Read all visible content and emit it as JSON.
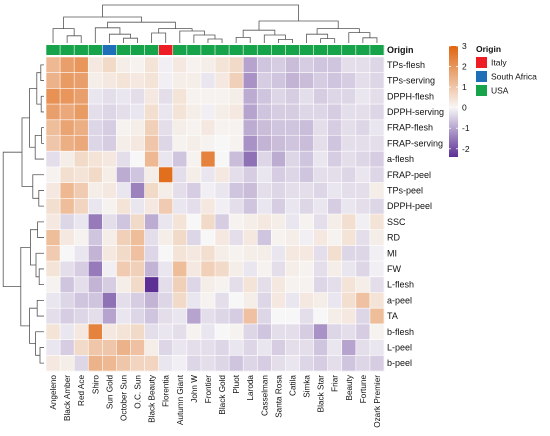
{
  "chart_data": {
    "type": "heatmap",
    "title": "",
    "xlabel": "",
    "ylabel": "",
    "columns": [
      "Angeleno",
      "Black Amber",
      "Red Ace",
      "Shiro",
      "Sun Gold",
      "October Sun",
      "O.C. Sun",
      "Black Beauty",
      "Florentia",
      "Autumn Giant",
      "John W",
      "Frontier",
      "Black Gold",
      "Pluot",
      "Laroda",
      "Casselman",
      "Santa Rosa",
      "Catila",
      "Simka",
      "Black Star",
      "Friar",
      "Beauty",
      "Fortune",
      "Ozark Premier"
    ],
    "rows": [
      "TPs-flesh",
      "TPs-serving",
      "DPPH-flesh",
      "DPPH-serving",
      "FRAP-flesh",
      "FRAP-serving",
      "a-flesh",
      "FRAP-peel",
      "TPs-peel",
      "DPPH-peel",
      "SSC",
      "RD",
      "MI",
      "FW",
      "L-flesh",
      "a-peel",
      "TA",
      "b-flesh",
      "L-peel",
      "b-peel"
    ],
    "values": [
      [
        1.3,
        1.8,
        2.0,
        0.3,
        0.6,
        0.2,
        0.1,
        0.4,
        -0.1,
        0.3,
        0.1,
        0.2,
        0.4,
        0.6,
        -1.0,
        -0.6,
        -0.5,
        -0.7,
        -0.5,
        -0.6,
        -0.6,
        -0.3,
        -0.3,
        -0.4
      ],
      [
        1.4,
        1.9,
        1.8,
        0.2,
        0.3,
        0.4,
        0.3,
        0.4,
        -0.1,
        0.2,
        0.2,
        -0.2,
        0.3,
        0.8,
        -1.2,
        -0.5,
        -0.6,
        -0.8,
        -0.7,
        -0.5,
        -0.6,
        -0.5,
        -0.3,
        -0.4
      ],
      [
        2.1,
        2.0,
        1.8,
        -0.2,
        -0.3,
        -0.2,
        -0.3,
        0.3,
        -0.3,
        0.4,
        0.1,
        0.1,
        0.1,
        0.2,
        -0.9,
        -0.6,
        -0.4,
        -0.5,
        -0.3,
        -0.5,
        -0.4,
        -0.4,
        -0.2,
        -0.3
      ],
      [
        1.8,
        1.6,
        1.9,
        -0.3,
        -0.4,
        -0.3,
        -0.2,
        0.5,
        -0.2,
        0.4,
        0.2,
        -0.1,
        0.2,
        0.3,
        -1.0,
        -0.6,
        -0.5,
        -0.5,
        -0.4,
        -0.4,
        -0.5,
        -0.3,
        -0.3,
        -0.4
      ],
      [
        1.2,
        1.7,
        1.5,
        -0.4,
        -0.5,
        0.1,
        0.2,
        0.8,
        -0.3,
        0.2,
        0.1,
        0.3,
        0.1,
        0.1,
        -0.9,
        -0.7,
        -0.6,
        -0.6,
        -0.7,
        -0.3,
        -0.5,
        -0.3,
        -0.4,
        -0.2
      ],
      [
        1.0,
        1.5,
        1.6,
        -0.4,
        -0.5,
        0.2,
        0.3,
        1.0,
        -0.4,
        0.1,
        0.2,
        0.1,
        0.0,
        0.1,
        -1.2,
        -0.8,
        -0.7,
        -0.6,
        -0.7,
        -0.3,
        -0.6,
        -0.3,
        -0.3,
        -0.3
      ],
      [
        -0.3,
        0.2,
        0.6,
        0.4,
        0.3,
        -0.3,
        0.0,
        1.3,
        -0.2,
        -0.6,
        0.1,
        2.4,
        0.0,
        -0.7,
        -1.6,
        -0.4,
        -0.9,
        -0.4,
        -0.6,
        -0.2,
        -0.5,
        -0.3,
        -0.4,
        -0.5
      ],
      [
        0.1,
        0.5,
        0.4,
        0.6,
        0.2,
        -0.9,
        -0.6,
        0.2,
        2.8,
        -0.3,
        0.2,
        -0.2,
        0.3,
        -0.3,
        -0.5,
        -0.2,
        -0.5,
        -0.4,
        -0.6,
        -0.3,
        -0.3,
        -0.4,
        -0.2,
        -0.4
      ],
      [
        0.3,
        1.3,
        0.9,
        0.2,
        0.3,
        -0.2,
        -1.4,
        0.6,
        0.2,
        -0.3,
        -0.5,
        -0.1,
        -0.2,
        -0.6,
        -0.7,
        -0.3,
        -0.4,
        -0.3,
        -0.3,
        -0.4,
        -0.2,
        -0.3,
        -0.3,
        0.2
      ],
      [
        0.5,
        1.2,
        0.7,
        -0.2,
        0.1,
        0.4,
        -0.2,
        0.3,
        0.9,
        -0.2,
        -0.3,
        0.3,
        -0.1,
        -0.3,
        -0.6,
        -0.2,
        -0.5,
        -0.2,
        -0.4,
        -0.2,
        -0.5,
        -0.2,
        -0.3,
        -0.4
      ],
      [
        0.3,
        -0.4,
        -0.2,
        -1.5,
        -0.3,
        -0.6,
        0.6,
        -0.9,
        -0.2,
        0.4,
        0.0,
        0.6,
        -0.5,
        0.1,
        0.2,
        0.3,
        0.2,
        -0.2,
        0.1,
        -0.3,
        0.2,
        0.5,
        -0.1,
        0.4
      ],
      [
        1.2,
        0.3,
        0.1,
        -0.6,
        0.2,
        0.8,
        1.2,
        -0.3,
        0.2,
        0.6,
        -0.4,
        0.0,
        0.3,
        -0.3,
        0.3,
        -0.6,
        0.1,
        0.2,
        -0.1,
        0.3,
        0.1,
        0.4,
        -0.3,
        0.2
      ],
      [
        0.9,
        0.0,
        -0.2,
        -0.8,
        0.3,
        0.6,
        1.1,
        -0.4,
        0.0,
        0.4,
        0.3,
        0.5,
        0.2,
        0.1,
        0.2,
        0.2,
        -0.2,
        0.3,
        0.3,
        -0.3,
        0.5,
        -0.4,
        -0.4,
        -0.1
      ],
      [
        0.4,
        -0.3,
        -0.5,
        -1.5,
        -0.1,
        0.9,
        0.8,
        -0.8,
        -0.2,
        1.2,
        0.3,
        0.8,
        0.6,
        0.2,
        -0.2,
        0.1,
        -0.3,
        0.2,
        0.1,
        -0.3,
        0.2,
        -0.2,
        -0.4,
        -0.1
      ],
      [
        0.1,
        -0.6,
        -0.3,
        -0.8,
        -0.5,
        0.2,
        0.6,
        -2.4,
        -0.3,
        0.8,
        -0.4,
        0.2,
        0.1,
        -0.3,
        0.4,
        -0.3,
        0.3,
        0.1,
        0.1,
        -0.4,
        -0.3,
        0.4,
        0.2,
        -0.3
      ],
      [
        -0.2,
        -0.4,
        -0.6,
        -0.6,
        -1.6,
        -0.3,
        -0.5,
        -0.8,
        -0.4,
        0.6,
        -0.2,
        0.1,
        -0.3,
        0.0,
        0.2,
        -0.4,
        0.3,
        -0.2,
        0.3,
        0.2,
        -0.2,
        0.5,
        1.1,
        0.4
      ],
      [
        -0.3,
        -0.5,
        -0.4,
        -0.3,
        -1.0,
        -0.2,
        -0.4,
        -0.6,
        -0.3,
        -0.2,
        -1.0,
        -0.3,
        -0.4,
        -0.5,
        1.1,
        -0.4,
        0.0,
        0.0,
        -0.3,
        0.0,
        0.2,
        0.3,
        -0.4,
        1.2
      ],
      [
        0.4,
        -0.2,
        0.3,
        2.4,
        0.3,
        0.4,
        0.6,
        -0.3,
        -0.2,
        -0.3,
        0.1,
        -0.2,
        0.0,
        0.1,
        -0.4,
        -0.6,
        -0.3,
        -0.3,
        -0.5,
        -1.2,
        -0.4,
        -0.3,
        -0.5,
        0.1
      ],
      [
        -0.2,
        -0.5,
        0.6,
        1.0,
        1.0,
        1.4,
        1.1,
        0.2,
        -0.4,
        -0.2,
        -0.3,
        -0.3,
        -0.4,
        -0.2,
        -0.4,
        -0.2,
        -0.5,
        -0.3,
        -0.3,
        -0.6,
        -0.2,
        -1.0,
        -0.3,
        -0.2
      ],
      [
        0.3,
        0.2,
        -0.4,
        1.4,
        1.3,
        1.0,
        0.7,
        0.7,
        -0.2,
        -0.1,
        -0.4,
        -0.3,
        -0.4,
        -0.6,
        -0.4,
        -0.5,
        -0.3,
        -0.2,
        -0.4,
        -0.5,
        -0.3,
        -0.6,
        -0.4,
        -0.5
      ]
    ],
    "origin": [
      "USA",
      "USA",
      "USA",
      "USA",
      "South Africa",
      "USA",
      "USA",
      "USA",
      "Italy",
      "USA",
      "USA",
      "USA",
      "USA",
      "USA",
      "USA",
      "USA",
      "USA",
      "USA",
      "USA",
      "USA",
      "USA",
      "USA",
      "USA",
      "USA"
    ],
    "color_scale": {
      "min": -2.4,
      "max": 3,
      "ticks": [
        3,
        2,
        1,
        0,
        -1,
        -2
      ],
      "low_color": "#5B2F94",
      "mid_color": "#F7F7F7",
      "high_color": "#E0650E"
    },
    "annotation": {
      "title": "Origin",
      "legend_title": "Origin",
      "categories": [
        {
          "name": "Italy",
          "color": "#EE1C25"
        },
        {
          "name": "South Africa",
          "color": "#1F6FB8"
        },
        {
          "name": "USA",
          "color": "#16A34A"
        }
      ]
    },
    "dendrograms": {
      "rows": true,
      "columns": true
    },
    "grid": false
  }
}
